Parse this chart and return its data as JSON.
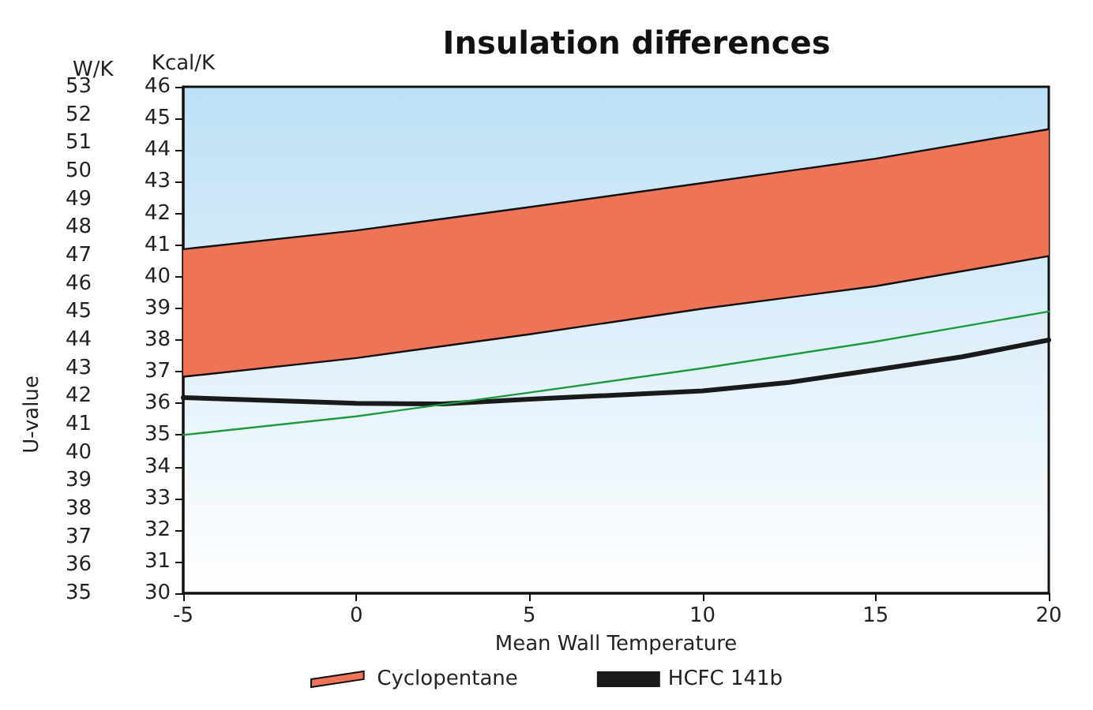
{
  "chart_data": {
    "type": "line",
    "title": "Insulation differences",
    "xlabel": "Mean Wall Temperature",
    "ylabel": "Kcal/K",
    "y2label": "W/K",
    "annotations": [
      "U-value"
    ],
    "xlim": [
      -5,
      20
    ],
    "xticks": [
      -5,
      0,
      5,
      10,
      15,
      20
    ],
    "ylim": [
      30,
      46
    ],
    "yticks": [
      30,
      31,
      32,
      33,
      34,
      35,
      36,
      37,
      38,
      39,
      40,
      41,
      42,
      43,
      44,
      45,
      46
    ],
    "y2lim": [
      35,
      53
    ],
    "y2ticks": [
      35,
      36,
      37,
      38,
      39,
      40,
      41,
      42,
      43,
      44,
      45,
      46,
      47,
      48,
      49,
      50,
      51,
      52,
      53
    ],
    "grid": false,
    "legend": "bottom",
    "marker": "none",
    "line_style": "solid",
    "series": [
      {
        "type": "line",
        "color": "#111111",
        "x": [
          -5,
          0,
          5,
          10,
          15,
          20
        ],
        "values": [
          36.84,
          37.43,
          38.18,
          38.99,
          39.7,
          40.65
        ]
      },
      {
        "name": "Cyclopentane",
        "type": "area",
        "color": "#ee7458",
        "x": [
          -5,
          0,
          5,
          10,
          15,
          20
        ],
        "values": [
          40.87,
          41.46,
          42.2,
          42.96,
          43.73,
          44.66
        ]
      },
      {
        "name": "HCFC 141b",
        "color": "#1a1a1a",
        "x": [
          -5,
          0,
          2.5,
          5,
          10,
          12.5,
          15,
          17.5,
          20
        ],
        "values": [
          36.18,
          36.0,
          35.98,
          36.13,
          36.39,
          36.66,
          37.06,
          37.47,
          38.0
        ]
      },
      {
        "color": "#1e9a3c",
        "x": [
          -5,
          0,
          5,
          10,
          15,
          20
        ],
        "values": [
          35.0,
          35.59,
          36.34,
          37.11,
          37.95,
          38.9
        ]
      }
    ]
  }
}
